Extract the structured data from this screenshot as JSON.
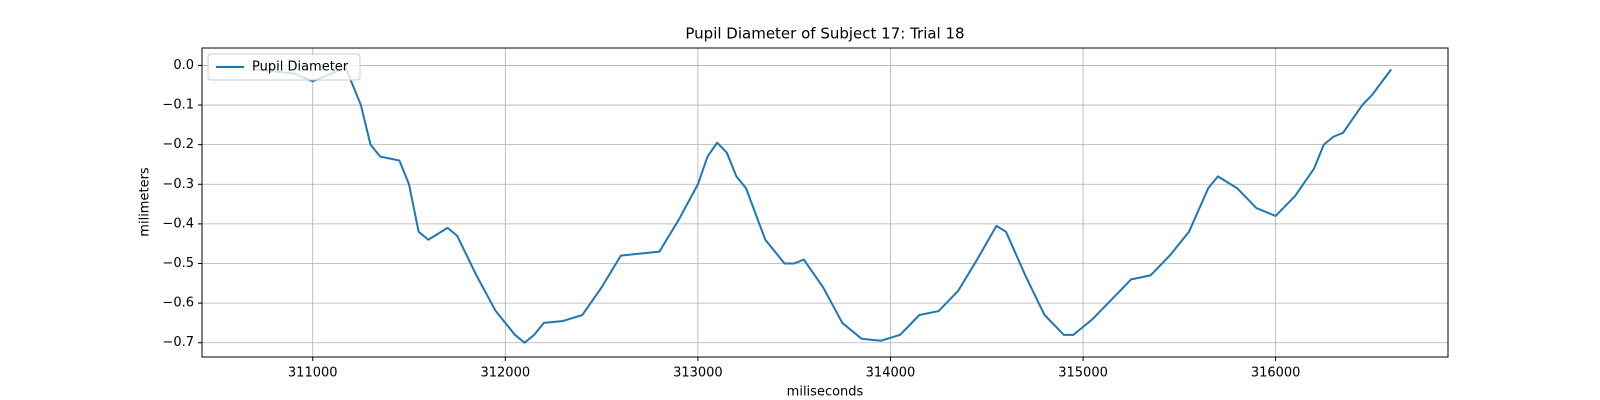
{
  "chart_data": {
    "type": "line",
    "title": "Pupil Diameter of Subject 17: Trial 18",
    "xlabel": "miliseconds",
    "ylabel": "milimeters",
    "x": [
      310700,
      310900,
      311000,
      311100,
      311170,
      311250,
      311300,
      311350,
      311450,
      311500,
      311550,
      311600,
      311700,
      311750,
      311850,
      311950,
      312050,
      312100,
      312150,
      312200,
      312300,
      312400,
      312500,
      312600,
      312800,
      312900,
      313000,
      313050,
      313100,
      313150,
      313200,
      313250,
      313350,
      313450,
      313500,
      313550,
      313650,
      313750,
      313850,
      313950,
      314050,
      314150,
      314250,
      314350,
      314450,
      314550,
      314600,
      314700,
      314800,
      314900,
      314950,
      315050,
      315150,
      315250,
      315350,
      315450,
      315550,
      315650,
      315700,
      315800,
      315900,
      316000,
      316100,
      316200,
      316250,
      316300,
      316350,
      316450,
      316500,
      316600
    ],
    "series": [
      {
        "name": "Pupil Diameter",
        "color": "#1f77b4",
        "values": [
          -0.01,
          -0.02,
          -0.04,
          -0.02,
          -0.005,
          -0.1,
          -0.2,
          -0.23,
          -0.24,
          -0.3,
          -0.42,
          -0.44,
          -0.41,
          -0.43,
          -0.53,
          -0.62,
          -0.68,
          -0.7,
          -0.68,
          -0.65,
          -0.645,
          -0.63,
          -0.56,
          -0.48,
          -0.47,
          -0.39,
          -0.3,
          -0.23,
          -0.195,
          -0.22,
          -0.28,
          -0.31,
          -0.44,
          -0.5,
          -0.5,
          -0.49,
          -0.56,
          -0.65,
          -0.69,
          -0.695,
          -0.68,
          -0.63,
          -0.62,
          -0.57,
          -0.49,
          -0.405,
          -0.42,
          -0.53,
          -0.63,
          -0.68,
          -0.68,
          -0.64,
          -0.59,
          -0.54,
          -0.53,
          -0.48,
          -0.42,
          -0.31,
          -0.28,
          -0.31,
          -0.36,
          -0.38,
          -0.33,
          -0.26,
          -0.2,
          -0.18,
          -0.17,
          -0.1,
          -0.075,
          -0.01
        ]
      }
    ],
    "xlim": [
      310425,
      316895
    ],
    "ylim": [
      -0.736,
      0.044
    ],
    "xticks": [
      311000,
      312000,
      313000,
      314000,
      315000,
      316000
    ],
    "yticks": [
      {
        "value": 0,
        "label": "0.0"
      },
      {
        "value": -0.1,
        "label": "−0.1"
      },
      {
        "value": -0.2,
        "label": "−0.2"
      },
      {
        "value": -0.3,
        "label": "−0.3"
      },
      {
        "value": -0.4,
        "label": "−0.4"
      },
      {
        "value": -0.5,
        "label": "−0.5"
      },
      {
        "value": -0.6,
        "label": "−0.6"
      },
      {
        "value": -0.7,
        "label": "−0.7"
      }
    ],
    "grid": true,
    "legend": "upper-left"
  }
}
